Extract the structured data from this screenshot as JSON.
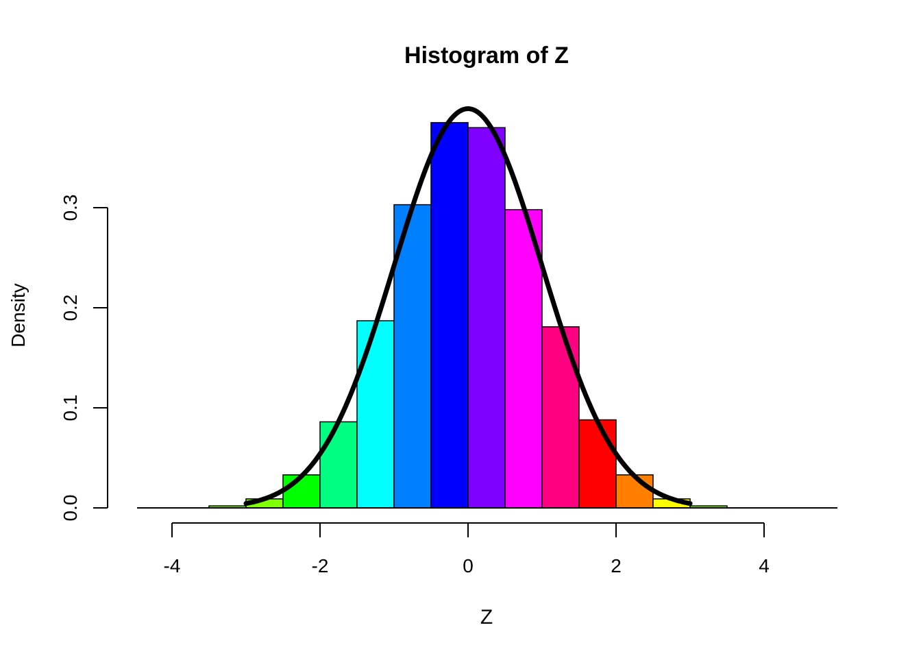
{
  "chart_data": {
    "type": "bar",
    "subtype": "histogram",
    "title": "Histogram of Z",
    "xlabel": "Z",
    "ylabel": "Density",
    "xlim": [
      -4.5,
      5
    ],
    "ylim": [
      0,
      0.4
    ],
    "x_ticks": [
      -4,
      -2,
      0,
      2,
      4
    ],
    "x_tick_labels": [
      "-4",
      "-2",
      "0",
      "2",
      "4"
    ],
    "y_ticks": [
      0.0,
      0.1,
      0.2,
      0.3
    ],
    "y_tick_labels": [
      "0.0",
      "0.1",
      "0.2",
      "0.3"
    ],
    "bin_edges": [
      -3.5,
      -3.0,
      -2.5,
      -2.0,
      -1.5,
      -1.0,
      -0.5,
      0.0,
      0.5,
      1.0,
      1.5,
      2.0,
      2.5,
      3.0,
      3.5
    ],
    "density": [
      0.002,
      0.009,
      0.033,
      0.086,
      0.187,
      0.303,
      0.385,
      0.38,
      0.298,
      0.181,
      0.088,
      0.033,
      0.009,
      0.002
    ],
    "bar_colors": [
      "#80FF00",
      "#80FF00",
      "#00FF00",
      "#00FF80",
      "#00FFFF",
      "#0080FF",
      "#0000FF",
      "#8000FF",
      "#FF00FF",
      "#FF0080",
      "#FF0000",
      "#FF8000",
      "#FFFF00",
      "#80FF00"
    ],
    "overlay_curve": {
      "type": "line",
      "distribution": "normal density",
      "x_range": [
        -3,
        3
      ],
      "color": "#000000"
    },
    "grid": false,
    "legend": "none"
  }
}
